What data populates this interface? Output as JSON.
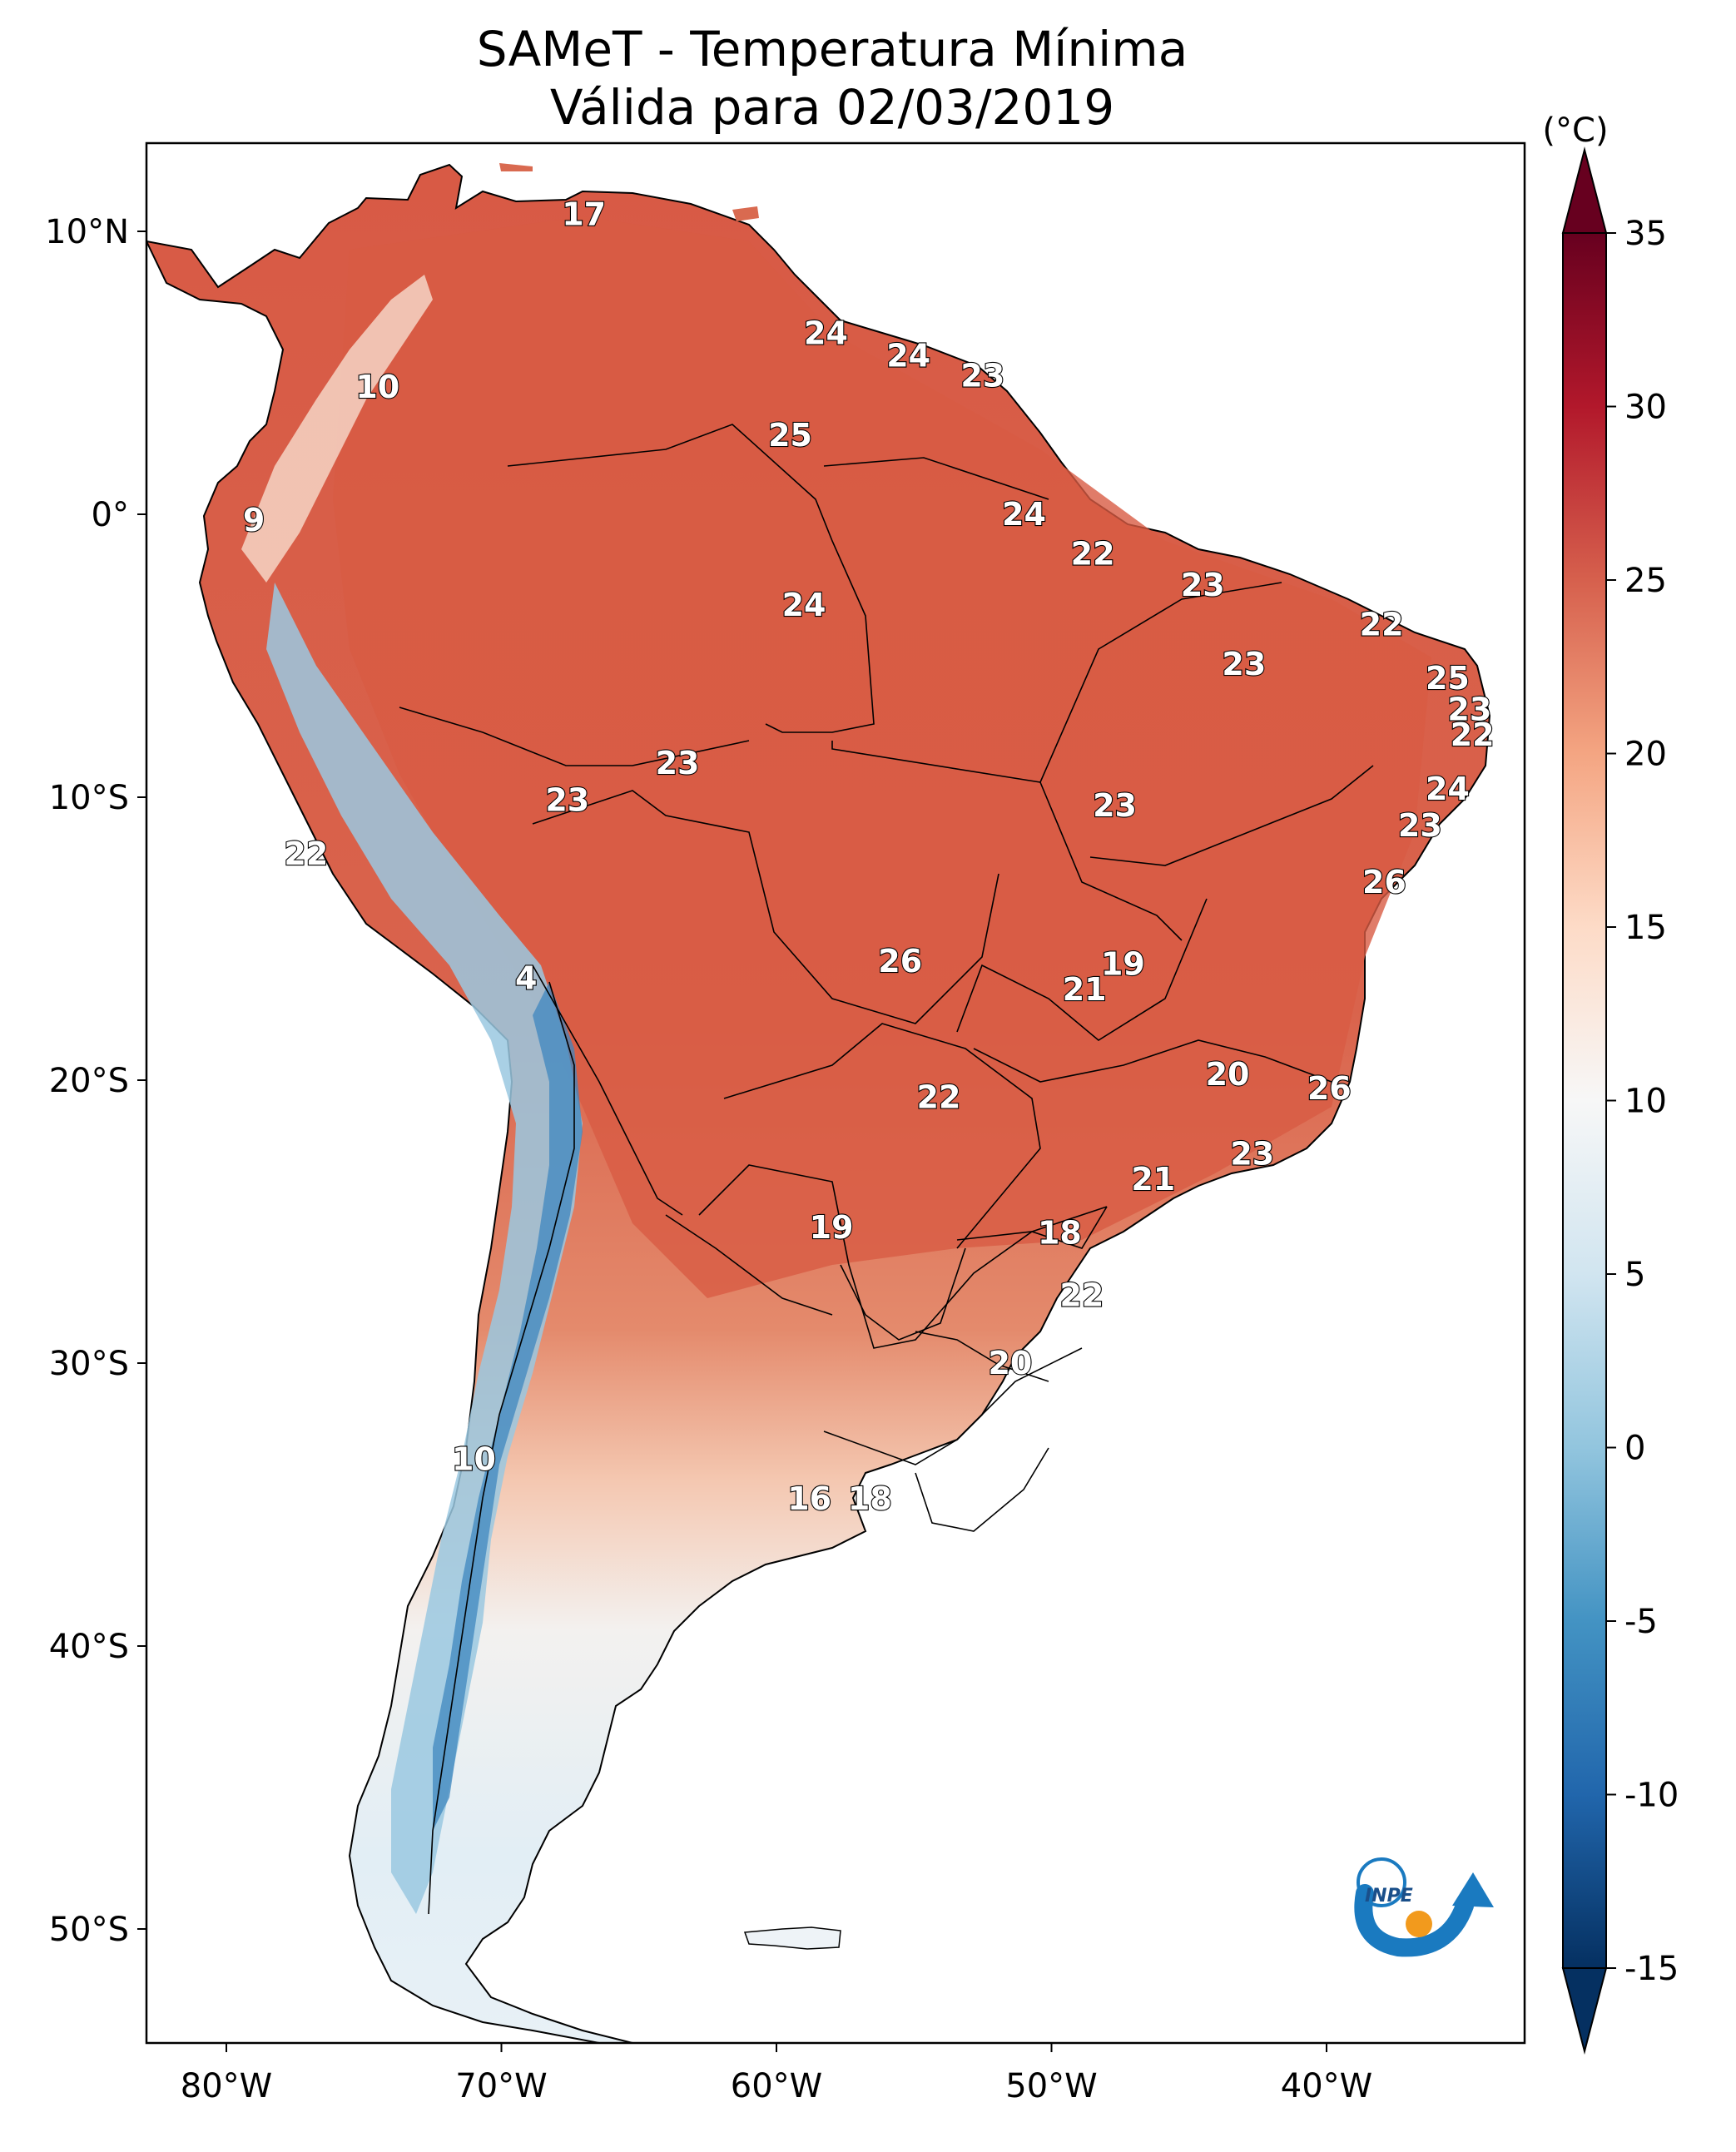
{
  "title": "SAMeT - Temperatura Mínima",
  "subtitle": "Válida para 02/03/2019",
  "colorbar": {
    "unit": "(°C)",
    "ticks": [
      "35",
      "30",
      "25",
      "20",
      "15",
      "10",
      "5",
      "0",
      "-5",
      "-10",
      "-15"
    ],
    "min": -15,
    "max": 35
  },
  "axes": {
    "lon_ticks": [
      "80°W",
      "70°W",
      "60°W",
      "50°W",
      "40°W"
    ],
    "lat_ticks": [
      "10°N",
      "0°",
      "10°S",
      "20°S",
      "30°S",
      "40°S",
      "50°S"
    ]
  },
  "logo_text": "INPE",
  "colors": {
    "warm": "#d6604d",
    "cold": "#4393c3",
    "neutral": "#f7f7f7",
    "ocean": "#ffffff"
  },
  "labels": [
    {
      "text": "17",
      "lon": -67,
      "lat": 10.6
    },
    {
      "text": "24",
      "lon": -58.2,
      "lat": 6.4
    },
    {
      "text": "24",
      "lon": -55.2,
      "lat": 5.6
    },
    {
      "text": "23",
      "lon": -52.5,
      "lat": 4.9
    },
    {
      "text": "10",
      "lon": -74.5,
      "lat": 4.5
    },
    {
      "text": "25",
      "lon": -59.5,
      "lat": 2.8
    },
    {
      "text": "9",
      "lon": -79,
      "lat": -0.2
    },
    {
      "text": "24",
      "lon": -51,
      "lat": 0.0
    },
    {
      "text": "22",
      "lon": -48.5,
      "lat": -1.4
    },
    {
      "text": "23",
      "lon": -44.5,
      "lat": -2.5
    },
    {
      "text": "24",
      "lon": -59,
      "lat": -3.2
    },
    {
      "text": "22",
      "lon": -38,
      "lat": -3.9
    },
    {
      "text": "23",
      "lon": -43,
      "lat": -5.3
    },
    {
      "text": "25",
      "lon": -35.6,
      "lat": -5.8
    },
    {
      "text": "23",
      "lon": -34.8,
      "lat": -6.9
    },
    {
      "text": "22",
      "lon": -34.7,
      "lat": -7.8
    },
    {
      "text": "23",
      "lon": -63.6,
      "lat": -8.8
    },
    {
      "text": "24",
      "lon": -35.6,
      "lat": -9.7
    },
    {
      "text": "23",
      "lon": -67.6,
      "lat": -10.1
    },
    {
      "text": "23",
      "lon": -47.7,
      "lat": -10.3
    },
    {
      "text": "23",
      "lon": -36.6,
      "lat": -11.0
    },
    {
      "text": "22",
      "lon": -77.1,
      "lat": -12.0
    },
    {
      "text": "26",
      "lon": -37.9,
      "lat": -13.0
    },
    {
      "text": "26",
      "lon": -55.5,
      "lat": -15.8
    },
    {
      "text": "19",
      "lon": -47.4,
      "lat": -15.9
    },
    {
      "text": "4",
      "lon": -69.1,
      "lat": -16.4
    },
    {
      "text": "21",
      "lon": -48.8,
      "lat": -16.8
    },
    {
      "text": "20",
      "lon": -43.6,
      "lat": -19.8
    },
    {
      "text": "26",
      "lon": -39.9,
      "lat": -20.3
    },
    {
      "text": "22",
      "lon": -54.1,
      "lat": -20.6
    },
    {
      "text": "23",
      "lon": -42.7,
      "lat": -22.6
    },
    {
      "text": "21",
      "lon": -46.3,
      "lat": -23.5
    },
    {
      "text": "19",
      "lon": -58.0,
      "lat": -25.2
    },
    {
      "text": "18",
      "lon": -49.7,
      "lat": -25.4
    },
    {
      "text": "22",
      "lon": -48.9,
      "lat": -27.6
    },
    {
      "text": "20",
      "lon": -51.5,
      "lat": -30.0
    },
    {
      "text": "10",
      "lon": -71.0,
      "lat": -33.4
    },
    {
      "text": "16",
      "lon": -58.8,
      "lat": -34.8
    },
    {
      "text": "18",
      "lon": -56.6,
      "lat": -34.8
    }
  ]
}
